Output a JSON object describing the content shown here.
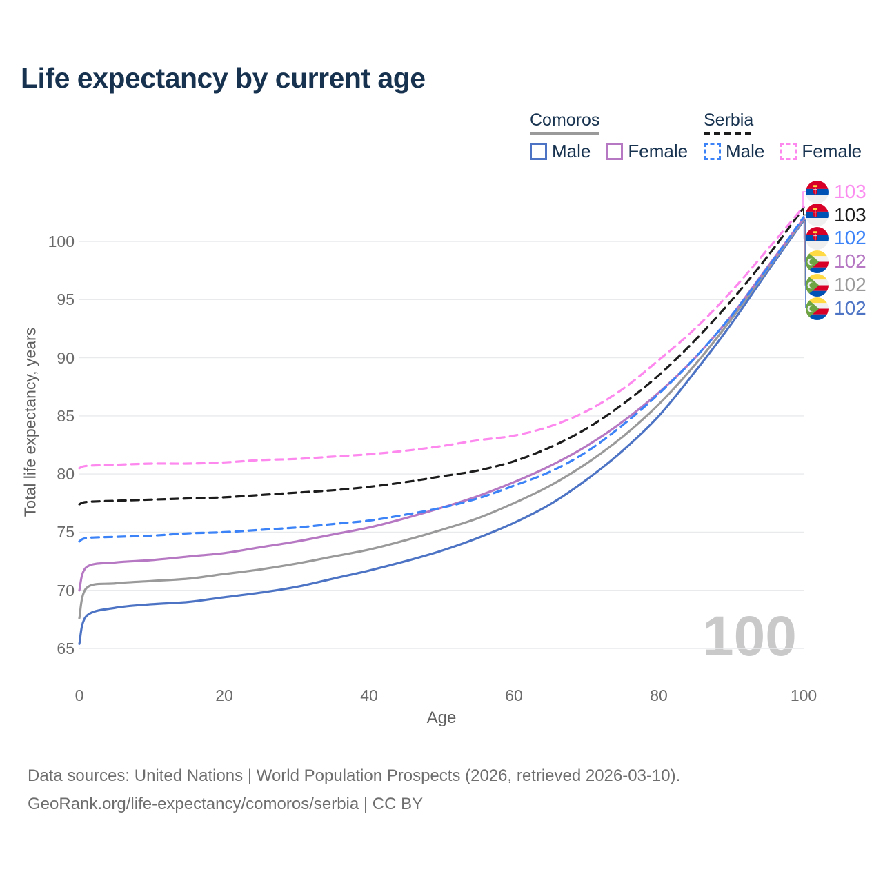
{
  "title": "Life expectancy by current age",
  "legend": {
    "groups": [
      {
        "label": "Comoros",
        "underline_style": "solid",
        "underline_color": "#9a9a9a",
        "items": [
          {
            "label": "Male",
            "color": "#4d74c4",
            "dash": false
          },
          {
            "label": "Female",
            "color": "#b678c2",
            "dash": false
          }
        ]
      },
      {
        "label": "Serbia",
        "underline_style": "dashed",
        "underline_color": "#1c1c1c",
        "items": [
          {
            "label": "Male",
            "color": "#3c83f7",
            "dash": true
          },
          {
            "label": "Female",
            "color": "#fd88ee",
            "dash": true
          }
        ]
      }
    ]
  },
  "axes": {
    "y": {
      "title": "Total life expectancy, years",
      "ticks": [
        65,
        70,
        75,
        80,
        85,
        90,
        95,
        100
      ]
    },
    "x": {
      "title": "Age",
      "ticks": [
        0,
        20,
        40,
        60,
        80,
        100
      ]
    }
  },
  "watermark": "100",
  "end_labels": [
    {
      "flag": "serbia",
      "series_name": "Serbia Female",
      "value": "103",
      "color": "#fc8df0"
    },
    {
      "flag": "serbia",
      "series_name": "Serbia Total",
      "value": "103",
      "color": "#1c1c1c"
    },
    {
      "flag": "serbia",
      "series_name": "Serbia Male",
      "value": "102",
      "color": "#3c83f7"
    },
    {
      "flag": "comoros",
      "series_name": "Comoros Female",
      "value": "102",
      "color": "#b678c2"
    },
    {
      "flag": "comoros",
      "series_name": "Comoros Total",
      "value": "102",
      "color": "#9a9a9a"
    },
    {
      "flag": "comoros",
      "series_name": "Comoros Male",
      "value": "102",
      "color": "#4d74c4"
    }
  ],
  "footer": {
    "line1": "Data sources: United Nations | World Population Prospects (2026, retrieved 2026-03-10).",
    "line2": "GeoRank.org/life-expectancy/comoros/serbia | CC BY"
  },
  "chart_data": {
    "type": "line",
    "title": "Life expectancy by current age",
    "xlabel": "Age",
    "ylabel": "Total life expectancy, years",
    "xlim": [
      0,
      100
    ],
    "ylim": [
      65,
      100
    ],
    "grid": "horizontal",
    "legend_position": "top-right",
    "x": [
      0,
      1,
      5,
      10,
      15,
      20,
      25,
      30,
      35,
      40,
      45,
      50,
      55,
      60,
      65,
      70,
      75,
      80,
      85,
      90,
      95,
      100
    ],
    "series": [
      {
        "name": "Serbia Female",
        "country": "Serbia",
        "sex": "female",
        "color": "#fd88ee",
        "dash": true,
        "values": [
          80.5,
          80.7,
          80.8,
          80.9,
          80.9,
          81.0,
          81.2,
          81.3,
          81.5,
          81.7,
          82.0,
          82.4,
          82.9,
          83.3,
          84.1,
          85.4,
          87.3,
          89.8,
          92.5,
          95.7,
          99.3,
          103.0
        ]
      },
      {
        "name": "Serbia Total",
        "country": "Serbia",
        "sex": "total",
        "color": "#1c1c1c",
        "dash": true,
        "values": [
          77.4,
          77.6,
          77.7,
          77.8,
          77.9,
          78.0,
          78.2,
          78.4,
          78.6,
          78.9,
          79.3,
          79.8,
          80.3,
          81.1,
          82.3,
          83.9,
          86.0,
          88.5,
          91.5,
          94.9,
          98.7,
          102.9
        ]
      },
      {
        "name": "Serbia Male",
        "country": "Serbia",
        "sex": "male",
        "color": "#3c83f7",
        "dash": true,
        "values": [
          74.2,
          74.5,
          74.6,
          74.7,
          74.9,
          75.0,
          75.2,
          75.4,
          75.7,
          76.0,
          76.5,
          77.1,
          77.9,
          79.0,
          80.2,
          81.9,
          84.2,
          86.9,
          90.0,
          93.6,
          97.7,
          102.1
        ]
      },
      {
        "name": "Comoros Female",
        "country": "Comoros",
        "sex": "female",
        "color": "#b678c2",
        "dash": false,
        "values": [
          70.0,
          72.0,
          72.4,
          72.6,
          72.9,
          73.2,
          73.7,
          74.2,
          74.8,
          75.4,
          76.2,
          77.1,
          78.1,
          79.3,
          80.7,
          82.4,
          84.5,
          87.0,
          90.0,
          93.6,
          97.8,
          102.0
        ]
      },
      {
        "name": "Comoros Total",
        "country": "Comoros",
        "sex": "total",
        "color": "#9a9a9a",
        "dash": false,
        "values": [
          67.6,
          70.2,
          70.6,
          70.8,
          71.0,
          71.4,
          71.8,
          72.3,
          72.9,
          73.5,
          74.3,
          75.2,
          76.2,
          77.5,
          79.0,
          80.9,
          83.2,
          86.0,
          89.4,
          93.3,
          97.6,
          101.9
        ]
      },
      {
        "name": "Comoros Male",
        "country": "Comoros",
        "sex": "male",
        "color": "#4d74c4",
        "dash": false,
        "values": [
          65.4,
          67.8,
          68.5,
          68.8,
          69.0,
          69.4,
          69.8,
          70.3,
          71.0,
          71.7,
          72.5,
          73.4,
          74.5,
          75.8,
          77.4,
          79.5,
          82.0,
          85.0,
          88.8,
          92.9,
          97.4,
          101.8
        ]
      }
    ]
  }
}
